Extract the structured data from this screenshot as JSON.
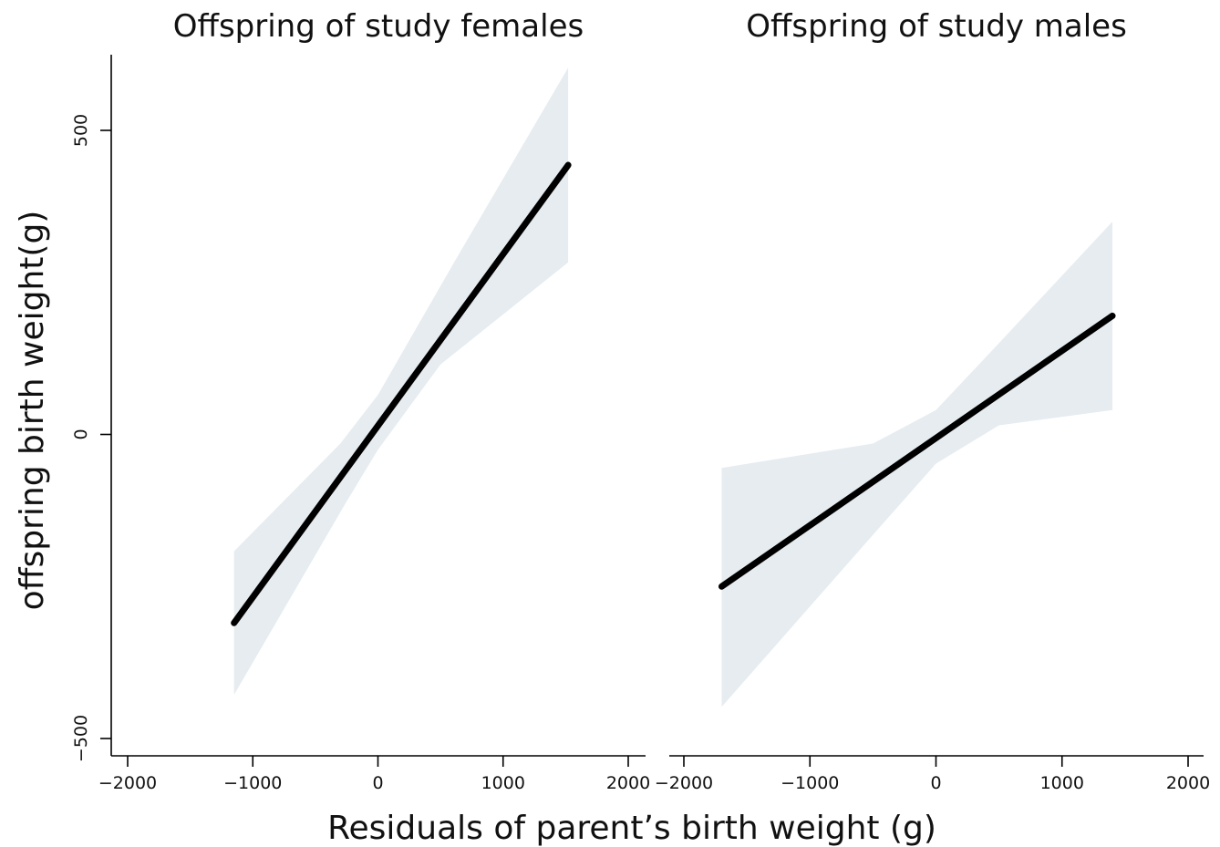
{
  "chart_data": {
    "type": "line",
    "shared_ylabel": "offspring birth weight(g)",
    "shared_xlabel": "Residuals of parent’s birth weight (g)",
    "ylim": [
      -500,
      500
    ],
    "yticks": [
      -500,
      0,
      500
    ],
    "ytick_labels": [
      "−500",
      "0",
      "500"
    ],
    "grid": false,
    "panels": [
      {
        "title": "Offspring of study females",
        "xlim": [
          -2000,
          2000
        ],
        "xticks": [
          -2000,
          -1000,
          0,
          1000,
          2000
        ],
        "xtick_labels": [
          "−2000",
          "−1000",
          "0",
          "1000",
          "2000"
        ],
        "line_color": "#000000",
        "band_color": "#e6ecf0",
        "fit": {
          "x": [
            -1150,
            1520
          ],
          "y": [
            -310,
            443
          ]
        },
        "ci_upper": {
          "x": [
            -1150,
            -300,
            0,
            600,
            1520
          ],
          "y": [
            -192,
            -15,
            65,
            280,
            603
          ]
        },
        "ci_lower": {
          "x": [
            -1150,
            -250,
            0,
            500,
            1520
          ],
          "y": [
            -428,
            -110,
            -25,
            115,
            283
          ]
        }
      },
      {
        "title": "Offspring of study males",
        "xlim": [
          -2000,
          2000
        ],
        "xticks": [
          -2000,
          -1000,
          0,
          1000,
          2000
        ],
        "xtick_labels": [
          "−2000",
          "−1000",
          "0",
          "1000",
          "2000"
        ],
        "line_color": "#000000",
        "band_color": "#e6ecf0",
        "fit": {
          "x": [
            -1700,
            1400
          ],
          "y": [
            -250,
            195
          ]
        },
        "ci_upper": {
          "x": [
            -1700,
            -500,
            0,
            500,
            1400
          ],
          "y": [
            -55,
            -15,
            40,
            150,
            350
          ]
        },
        "ci_lower": {
          "x": [
            -1700,
            -500,
            0,
            500,
            1400
          ],
          "y": [
            -448,
            -165,
            -48,
            15,
            40
          ]
        }
      }
    ]
  }
}
